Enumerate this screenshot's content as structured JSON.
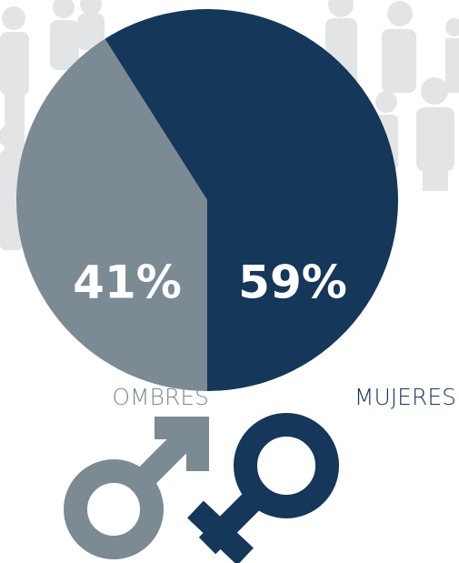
{
  "chart_data": {
    "type": "pie",
    "categories": [
      "OMBRES",
      "MUJERES"
    ],
    "values": [
      41,
      59
    ],
    "value_labels": [
      "41%",
      "59%"
    ],
    "colors": [
      "#7b8a93",
      "#15375a"
    ]
  }
}
